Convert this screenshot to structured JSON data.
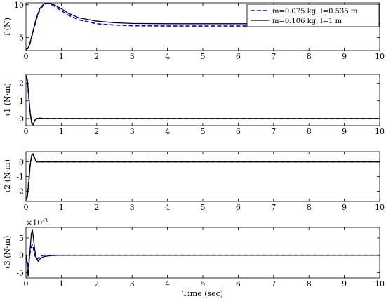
{
  "chart_data": [
    {
      "type": "line",
      "ylabel": "f (N)",
      "xlim": [
        0,
        10
      ],
      "ylim": [
        3,
        10.3
      ],
      "xticks": [
        "0",
        "1",
        "2",
        "3",
        "4",
        "5",
        "6",
        "7",
        "8",
        "9",
        "10"
      ],
      "yticks": [
        {
          "v": 5,
          "t": "5"
        },
        {
          "v": 10,
          "t": "10"
        }
      ],
      "series": [
        {
          "name": "m=0.075 kg, l=0.535 m",
          "color": "#0000ff",
          "dash": "dashed",
          "x": [
            0,
            0.05,
            0.1,
            0.2,
            0.3,
            0.4,
            0.5,
            0.6,
            0.7,
            0.8,
            1.0,
            1.2,
            1.5,
            2.0,
            2.5,
            3.0,
            4.0,
            5.0,
            6.0,
            6.3
          ],
          "y": [
            3.2,
            3.3,
            3.8,
            5.8,
            7.9,
            9.3,
            10.0,
            10.2,
            10.1,
            9.8,
            9.1,
            8.4,
            7.7,
            7.1,
            6.9,
            6.8,
            6.75,
            6.75,
            6.75,
            6.75
          ]
        },
        {
          "name": "m=0.106 kg, l=1 m",
          "color": "#000000",
          "dash": "solid",
          "x": [
            0,
            0.05,
            0.1,
            0.2,
            0.3,
            0.4,
            0.5,
            0.6,
            0.7,
            0.8,
            1.0,
            1.2,
            1.5,
            2.0,
            2.5,
            3.0,
            4.0,
            5.0,
            6.0,
            7.0,
            8.0,
            9.0,
            10.0
          ],
          "y": [
            3.2,
            3.3,
            3.9,
            6.0,
            8.1,
            9.5,
            10.1,
            10.3,
            10.2,
            10.0,
            9.4,
            8.7,
            8.0,
            7.5,
            7.25,
            7.15,
            7.1,
            7.1,
            7.1,
            7.1,
            7.1,
            7.1,
            7.1
          ]
        }
      ]
    },
    {
      "type": "line",
      "ylabel": "τ1 (N·m)",
      "xlim": [
        0,
        10
      ],
      "ylim": [
        -0.4,
        2.5
      ],
      "xticks": [
        "0",
        "1",
        "2",
        "3",
        "4",
        "5",
        "6",
        "7",
        "8",
        "9",
        "10"
      ],
      "yticks": [
        {
          "v": 0,
          "t": "0"
        },
        {
          "v": 1,
          "t": "1"
        },
        {
          "v": 2,
          "t": "2"
        }
      ],
      "series": [
        {
          "name": "",
          "color": "#0000ff",
          "dash": "dashed",
          "x": [
            0,
            0.04,
            0.08,
            0.12,
            0.16,
            0.2,
            0.25,
            0.3,
            0.4,
            0.5,
            10
          ],
          "y": [
            2.35,
            2.1,
            1.2,
            0.3,
            -0.2,
            -0.3,
            -0.1,
            0.0,
            0.02,
            0.0,
            0.0
          ]
        },
        {
          "name": "",
          "color": "#000000",
          "dash": "solid",
          "x": [
            0,
            0.04,
            0.08,
            0.12,
            0.16,
            0.2,
            0.25,
            0.3,
            0.4,
            0.5,
            10
          ],
          "y": [
            2.4,
            2.2,
            1.3,
            0.3,
            -0.25,
            -0.35,
            -0.12,
            0.0,
            0.02,
            0.0,
            0.0
          ]
        }
      ]
    },
    {
      "type": "line",
      "ylabel": "τ2 (N·m)",
      "xlim": [
        0,
        10
      ],
      "ylim": [
        -2.7,
        0.7
      ],
      "xticks": [
        "0",
        "1",
        "2",
        "3",
        "4",
        "5",
        "6",
        "7",
        "8",
        "9",
        "10"
      ],
      "yticks": [
        {
          "v": -2,
          "t": "-2"
        },
        {
          "v": -1,
          "t": "-1"
        },
        {
          "v": 0,
          "t": "0"
        }
      ],
      "series": [
        {
          "name": "",
          "color": "#0000ff",
          "dash": "dashed",
          "x": [
            0,
            0.04,
            0.08,
            0.12,
            0.16,
            0.2,
            0.25,
            0.3,
            0.4,
            10
          ],
          "y": [
            -2.5,
            -2.3,
            -1.3,
            -0.2,
            0.4,
            0.5,
            0.2,
            0.0,
            0.0,
            0.0
          ]
        },
        {
          "name": "",
          "color": "#000000",
          "dash": "solid",
          "x": [
            0,
            0.04,
            0.08,
            0.12,
            0.16,
            0.2,
            0.25,
            0.3,
            0.4,
            10
          ],
          "y": [
            -2.6,
            -2.4,
            -1.4,
            -0.2,
            0.45,
            0.55,
            0.25,
            0.0,
            0.0,
            0.0
          ]
        }
      ]
    },
    {
      "type": "line",
      "ylabel": "τ3 (N·m)",
      "exponent": "×10",
      "exponent_power": "-3",
      "xlabel": "Time (sec)",
      "xlim": [
        0,
        10
      ],
      "ylim": [
        -6.5,
        8
      ],
      "xticks": [
        "0",
        "1",
        "2",
        "3",
        "4",
        "5",
        "6",
        "7",
        "8",
        "9",
        "10"
      ],
      "yticks": [
        {
          "v": -5,
          "t": "-5"
        },
        {
          "v": 0,
          "t": "0"
        },
        {
          "v": 5,
          "t": "5"
        }
      ],
      "series": [
        {
          "name": "",
          "color": "#0000ff",
          "dash": "dashed",
          "x": [
            0,
            0.03,
            0.06,
            0.09,
            0.12,
            0.15,
            0.18,
            0.21,
            0.25,
            0.3,
            0.35,
            0.4,
            0.5,
            0.7,
            1.0,
            10
          ],
          "y": [
            0,
            -1.5,
            -3.5,
            -1.0,
            1.0,
            2.5,
            3.0,
            2.0,
            0.0,
            -1.2,
            -0.8,
            -0.3,
            0.0,
            0.0,
            0.0,
            0.0
          ]
        },
        {
          "name": "",
          "color": "#000000",
          "dash": "solid",
          "x": [
            0,
            0.03,
            0.06,
            0.09,
            0.12,
            0.15,
            0.18,
            0.21,
            0.25,
            0.3,
            0.35,
            0.4,
            0.5,
            0.7,
            1.0,
            10
          ],
          "y": [
            0,
            -2.5,
            -6.0,
            -2.0,
            2.0,
            6.0,
            7.5,
            5.0,
            1.5,
            -1.0,
            -1.8,
            -1.0,
            -0.4,
            -0.1,
            0.0,
            0.0
          ]
        }
      ]
    }
  ]
}
